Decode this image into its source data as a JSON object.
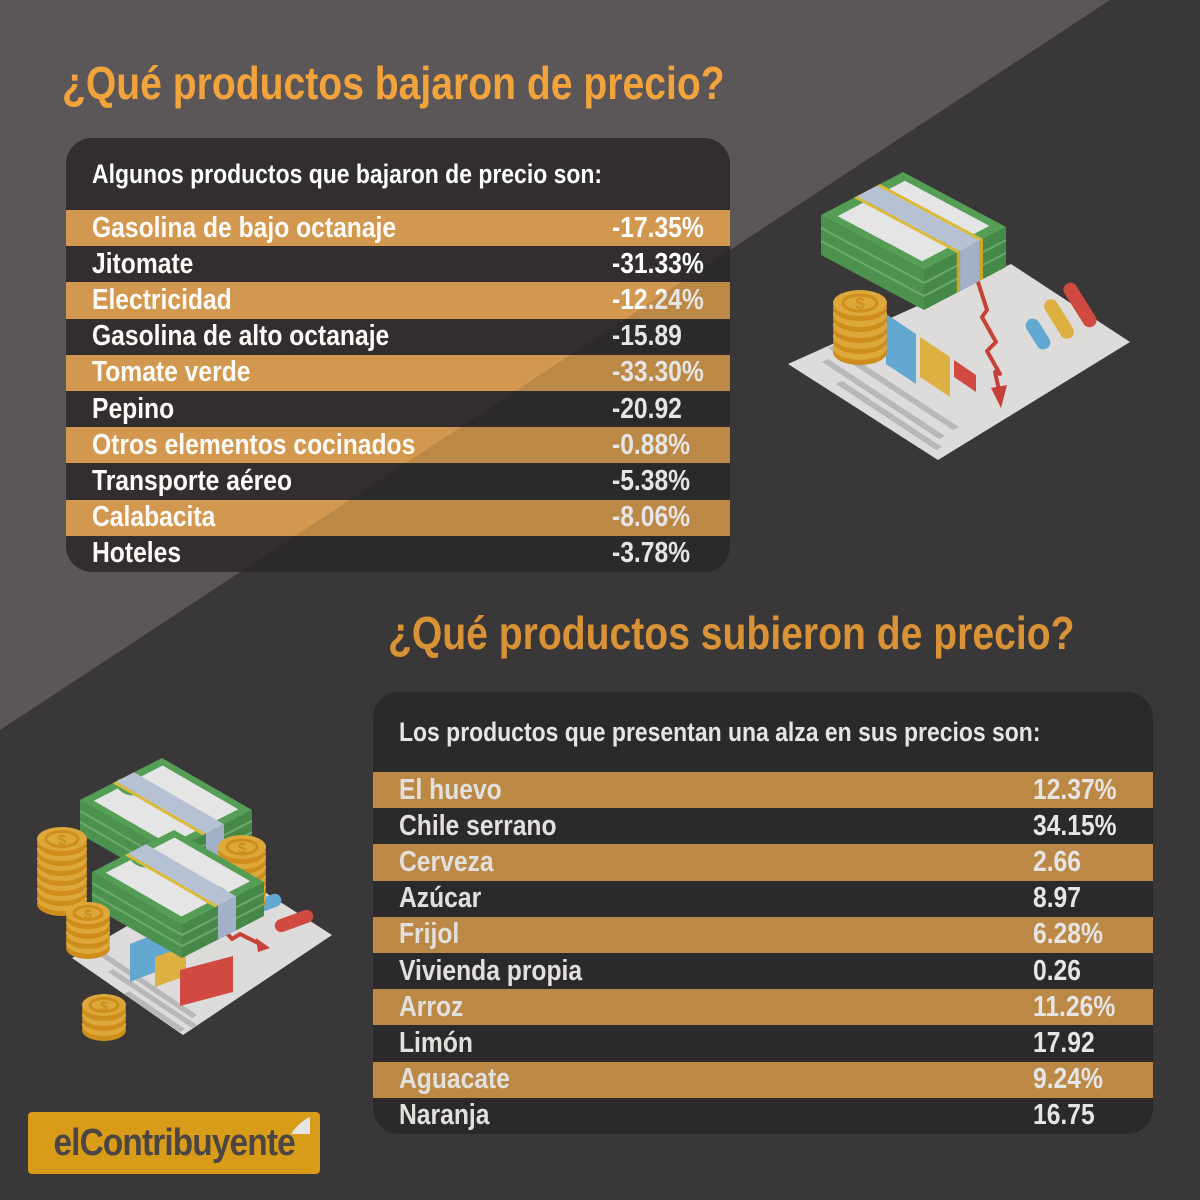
{
  "colors": {
    "background_light": "#5B5758",
    "background_dark": "#3A3737",
    "card_background": "#322E2F",
    "row_orange": "#D2984F",
    "title_orange": "#F2A33B",
    "text_white": "#FFFFFF",
    "logo_yellow": "#F1AE1C",
    "logo_text_gray": "#544E4D",
    "money_green": "#5FB05F",
    "coin_gold": "#F0A928",
    "chart_blue": "#6FBCE9",
    "chart_yellow": "#F7C44A",
    "chart_red": "#E8534A"
  },
  "section_down": {
    "title": "¿Qué productos bajaron de precio?",
    "card_header": "Algunos productos que bajaron de precio son:",
    "rows": [
      {
        "label": "Gasolina de bajo octanaje",
        "value": "-17.35%"
      },
      {
        "label": "Jitomate",
        "value": "-31.33%"
      },
      {
        "label": "Electricidad",
        "value": "-12.24%"
      },
      {
        "label": "Gasolina de alto octanaje",
        "value": "-15.89"
      },
      {
        "label": "Tomate verde",
        "value": "-33.30%"
      },
      {
        "label": "Pepino",
        "value": "-20.92"
      },
      {
        "label": "Otros elementos cocinados",
        "value": "-0.88%"
      },
      {
        "label": "Transporte aéreo",
        "value": "-5.38%"
      },
      {
        "label": "Calabacita",
        "value": "-8.06%"
      },
      {
        "label": "Hoteles",
        "value": "-3.78%"
      }
    ]
  },
  "section_up": {
    "title": "¿Qué productos subieron de precio?",
    "card_header": "Los productos que presentan una alza en sus precios son:",
    "rows": [
      {
        "label": "El huevo",
        "value": "12.37%"
      },
      {
        "label": "Chile serrano",
        "value": "34.15%"
      },
      {
        "label": "Cerveza",
        "value": "2.66"
      },
      {
        "label": "Azúcar",
        "value": "8.97"
      },
      {
        "label": "Frijol",
        "value": "6.28%"
      },
      {
        "label": "Vivienda propia",
        "value": "0.26"
      },
      {
        "label": "Arroz",
        "value": "11.26%"
      },
      {
        "label": "Limón",
        "value": "17.92"
      },
      {
        "label": "Aguacate",
        "value": "9.24%"
      },
      {
        "label": "Naranja",
        "value": "16.75"
      }
    ]
  },
  "logo": {
    "text": "elContribuyente"
  },
  "chart_data": [
    {
      "type": "table",
      "title": "¿Qué productos bajaron de precio?",
      "subtitle": "Algunos productos que bajaron de precio son:",
      "columns": [
        "producto",
        "variacion_porcentual"
      ],
      "rows": [
        [
          "Gasolina de bajo octanaje",
          -17.35
        ],
        [
          "Jitomate",
          -31.33
        ],
        [
          "Electricidad",
          -12.24
        ],
        [
          "Gasolina de alto octanaje",
          -15.89
        ],
        [
          "Tomate verde",
          -33.3
        ],
        [
          "Pepino",
          -20.92
        ],
        [
          "Otros elementos cocinados",
          -0.88
        ],
        [
          "Transporte aéreo",
          -5.38
        ],
        [
          "Calabacita",
          -8.06
        ],
        [
          "Hoteles",
          -3.78
        ]
      ]
    },
    {
      "type": "table",
      "title": "¿Qué productos subieron de precio?",
      "subtitle": "Los productos que presentan una alza en sus precios son:",
      "columns": [
        "producto",
        "variacion_porcentual"
      ],
      "rows": [
        [
          "El huevo",
          12.37
        ],
        [
          "Chile serrano",
          34.15
        ],
        [
          "Cerveza",
          2.66
        ],
        [
          "Azúcar",
          8.97
        ],
        [
          "Frijol",
          6.28
        ],
        [
          "Vivienda propia",
          0.26
        ],
        [
          "Arroz",
          11.26
        ],
        [
          "Limón",
          17.92
        ],
        [
          "Aguacate",
          9.24
        ],
        [
          "Naranja",
          16.75
        ]
      ]
    }
  ]
}
